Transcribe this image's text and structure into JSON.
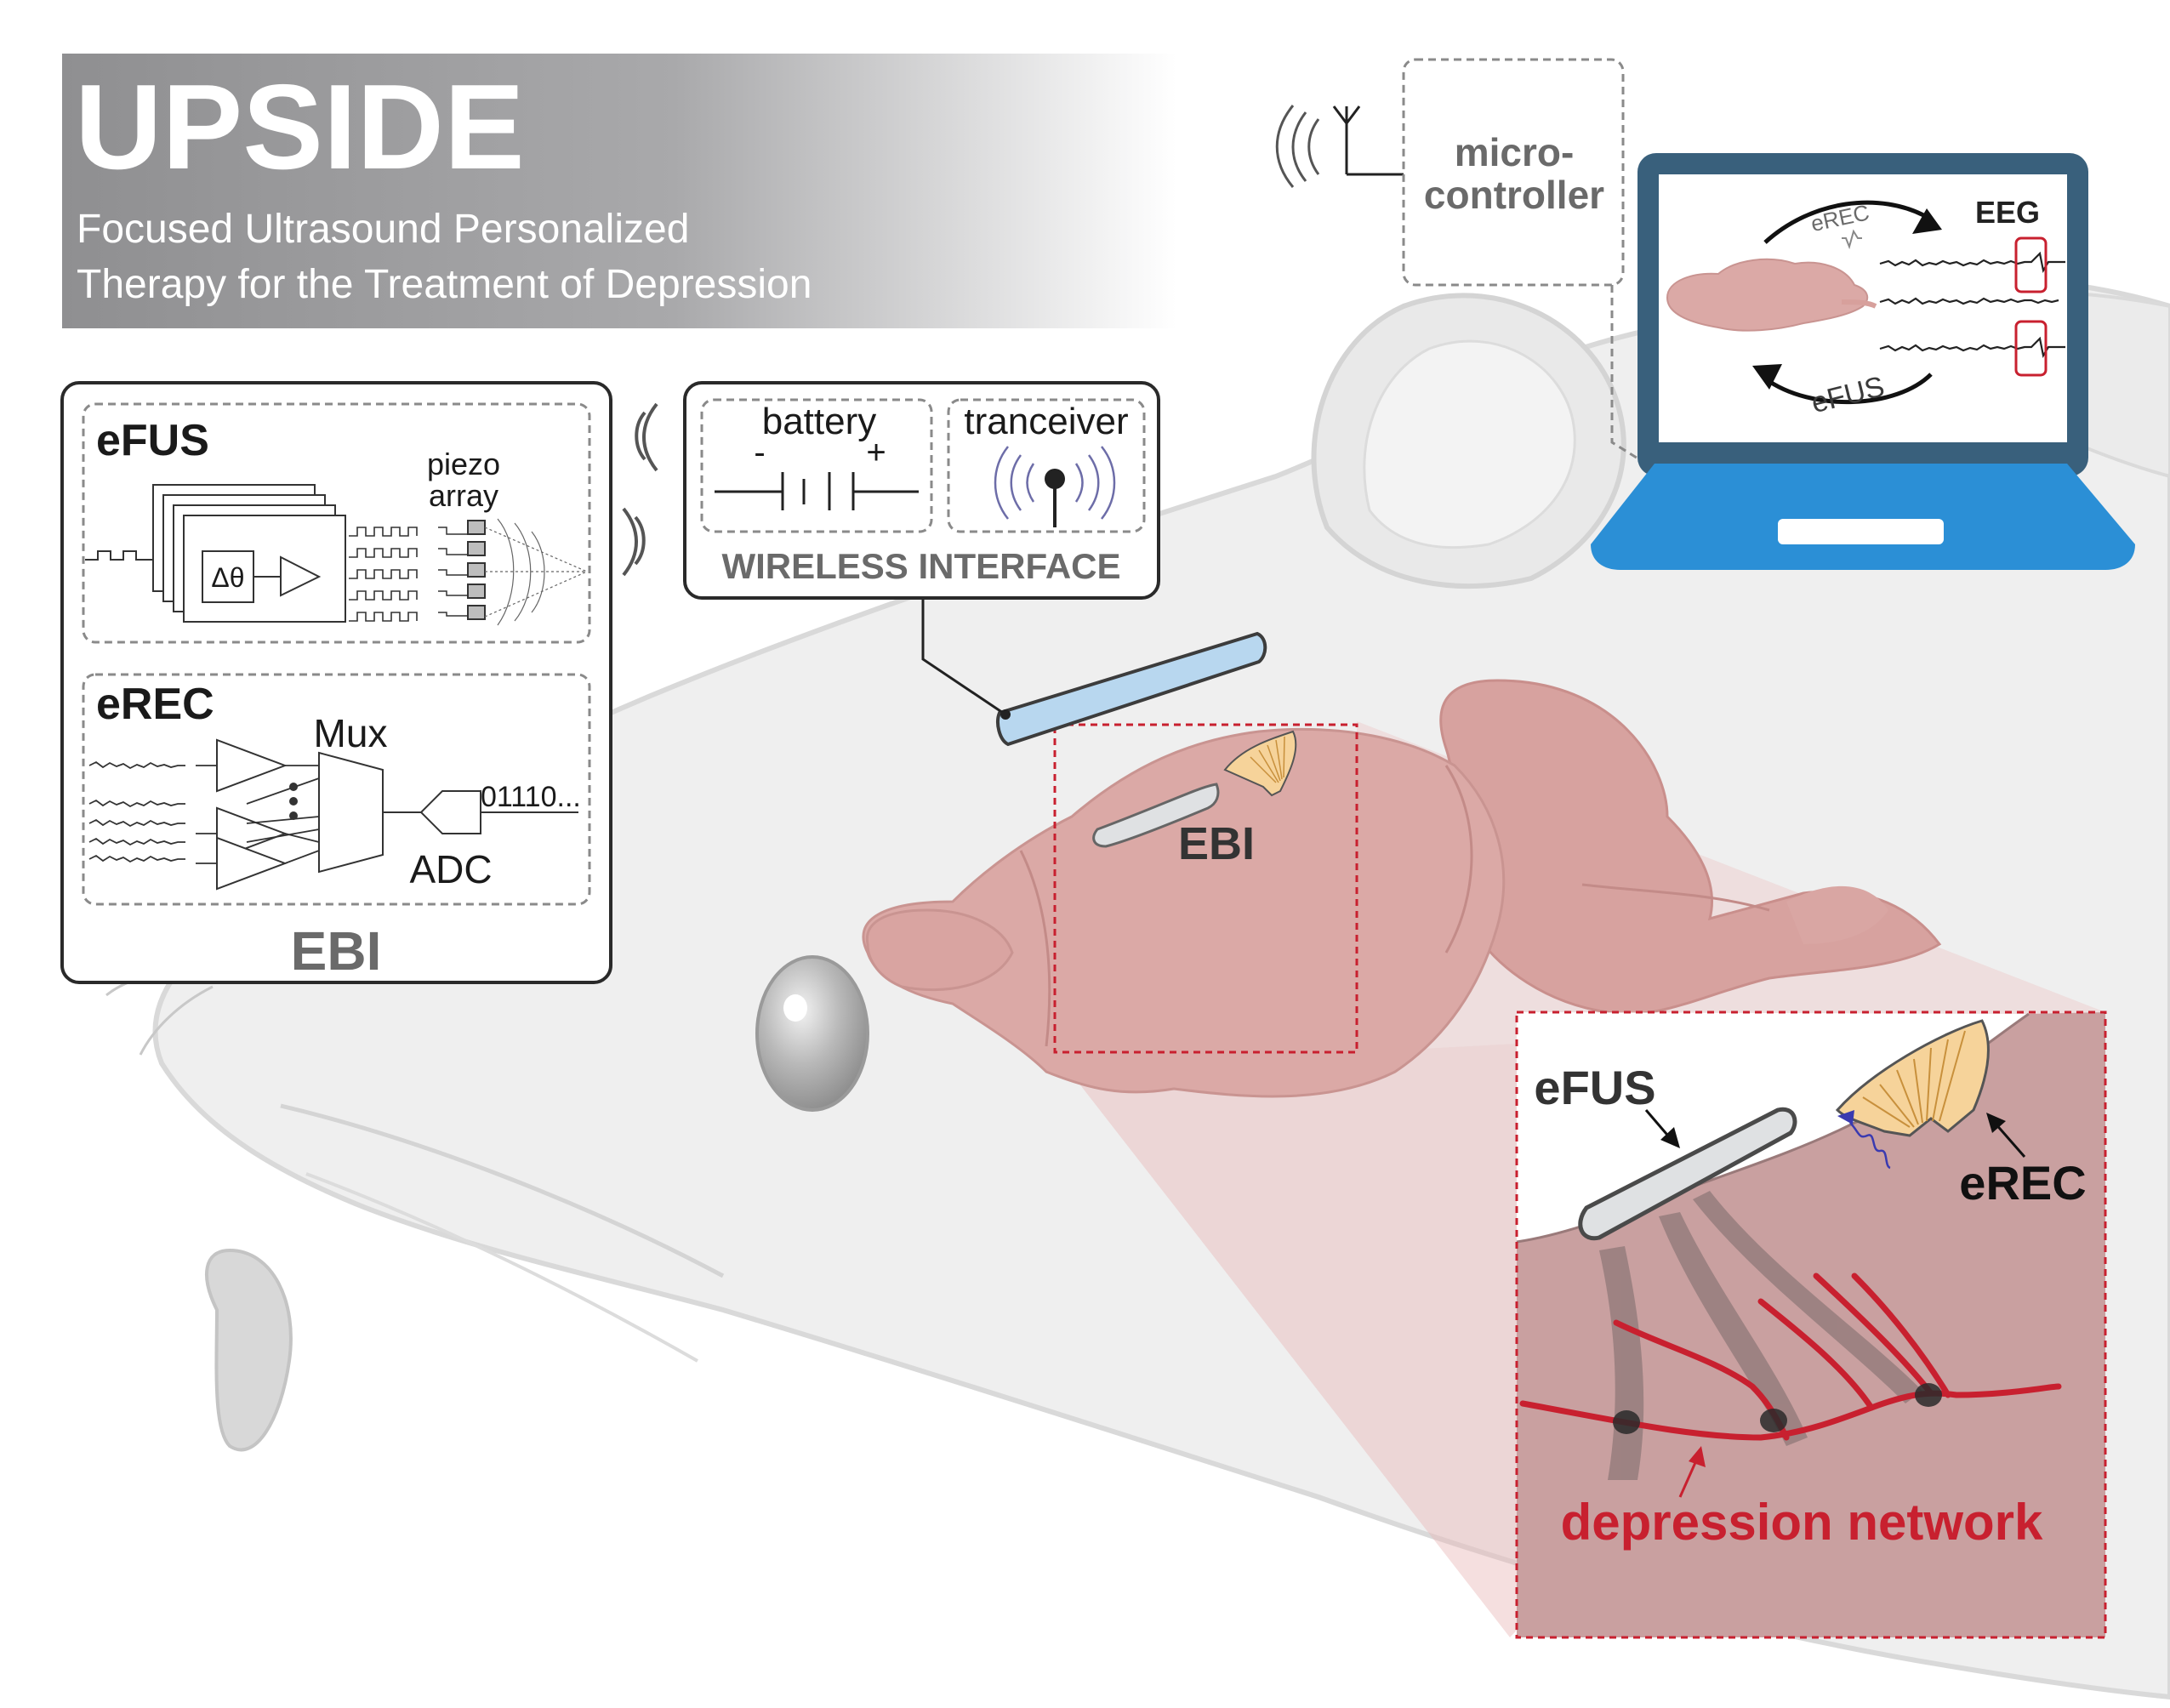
{
  "banner": {
    "title": "UPSIDE",
    "subtitle_line1": "Focused Ultrasound Personalized",
    "subtitle_line2": "Therapy for the Treatment of Depression"
  },
  "ebi_panel": {
    "efus_label": "eFUS",
    "piezo_line1": "piezo",
    "piezo_line2": "array",
    "delta_theta": "Δθ",
    "erec_label": "eREC",
    "mux_label": "Mux",
    "adc_label": "ADC",
    "bits_label": "01110...",
    "panel_label": "EBI"
  },
  "wireless": {
    "battery_label": "battery",
    "minus": "-",
    "plus": "+",
    "transceiver_label": "tranceiver",
    "interface_label": "WIRELESS INTERFACE"
  },
  "microcontroller": {
    "line1": "micro-",
    "line2": "controller"
  },
  "laptop": {
    "erec_label": "eREC",
    "efus_label": "eFUS",
    "eeg_label": "EEG"
  },
  "head": {
    "ebi_label": "EBI"
  },
  "inset": {
    "efus_label": "eFUS",
    "erec_label": "eREC",
    "network_label": "depression network"
  },
  "colors": {
    "network_red": "#c8202f",
    "brain_pink": "#dba3a0",
    "laptop_blue": "#2b8fd6",
    "laptop_dark": "#39607c",
    "device_blue": "#b8d7ef",
    "banner_gray": "#9a9a9c"
  }
}
